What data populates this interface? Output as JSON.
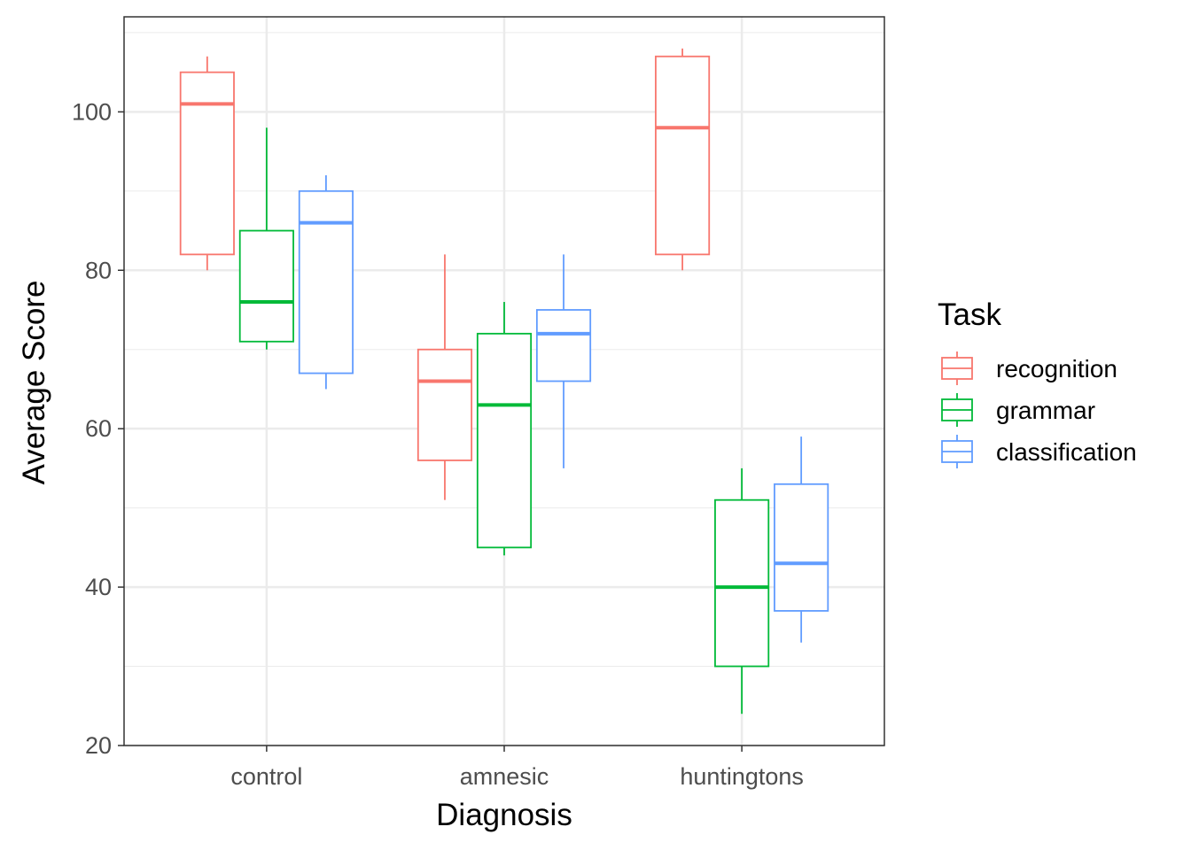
{
  "chart_data": {
    "type": "boxplot",
    "xlabel": "Diagnosis",
    "ylabel": "Average Score",
    "ylim": [
      20,
      112
    ],
    "y_ticks": [
      20,
      40,
      60,
      80,
      100
    ],
    "grid": true,
    "legend": {
      "title": "Task",
      "position": "right"
    },
    "categories": [
      "control",
      "amnesic",
      "huntingtons"
    ],
    "series": [
      {
        "name": "recognition",
        "color": "#F8766D",
        "boxes": [
          {
            "category": "control",
            "min": 80,
            "q1": 82,
            "median": 101,
            "q3": 105,
            "max": 107
          },
          {
            "category": "amnesic",
            "min": 51,
            "q1": 56,
            "median": 66,
            "q3": 70,
            "max": 82
          },
          {
            "category": "huntingtons",
            "min": 80,
            "q1": 82,
            "median": 98,
            "q3": 107,
            "max": 108
          }
        ]
      },
      {
        "name": "grammar",
        "color": "#00BA38",
        "boxes": [
          {
            "category": "control",
            "min": 70,
            "q1": 71,
            "median": 76,
            "q3": 85,
            "max": 98
          },
          {
            "category": "amnesic",
            "min": 44,
            "q1": 45,
            "median": 63,
            "q3": 72,
            "max": 76
          },
          {
            "category": "huntingtons",
            "min": 24,
            "q1": 30,
            "median": 40,
            "q3": 51,
            "max": 55
          }
        ]
      },
      {
        "name": "classification",
        "color": "#619CFF",
        "boxes": [
          {
            "category": "control",
            "min": 65,
            "q1": 67,
            "median": 86,
            "q3": 90,
            "max": 92
          },
          {
            "category": "amnesic",
            "min": 55,
            "q1": 66,
            "median": 72,
            "q3": 75,
            "max": 82
          },
          {
            "category": "huntingtons",
            "min": 33,
            "q1": 37,
            "median": 43,
            "q3": 53,
            "max": 59
          }
        ]
      }
    ]
  }
}
